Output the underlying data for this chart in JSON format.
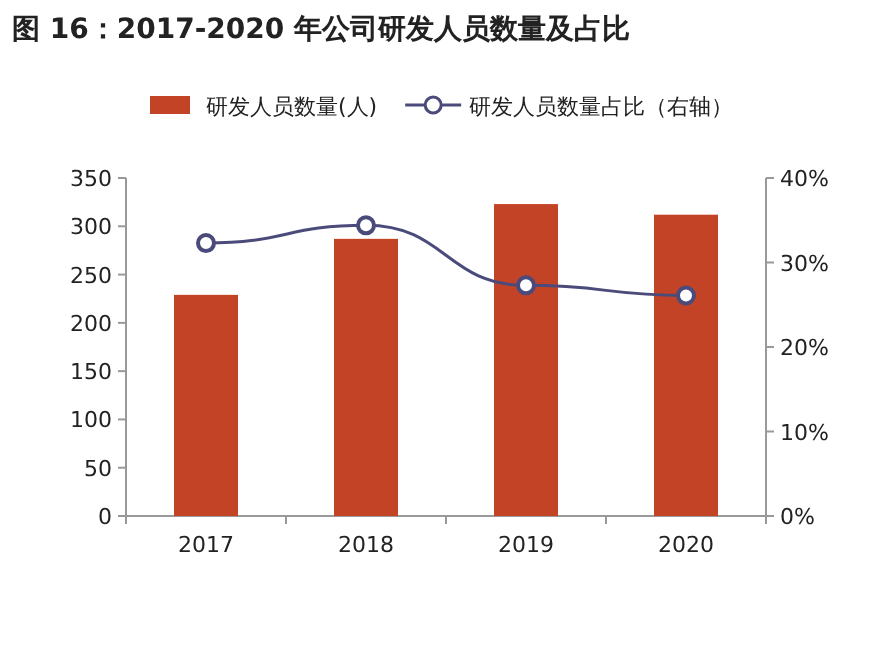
{
  "chart_data": {
    "type": "bar",
    "title": "图 16：2017-2020 年公司研发人员数量及占比",
    "categories": [
      "2017",
      "2018",
      "2019",
      "2020"
    ],
    "series": [
      {
        "name": "研发人员数量(人)",
        "color": "#c34327",
        "values": [
          229,
          287,
          323,
          312
        ]
      },
      {
        "name": "研发人员数量占比（右轴）",
        "type": "line",
        "axis": "y2",
        "color": "#4b4b7b",
        "marker": "circle",
        "values": [
          32.3,
          34.4,
          27.3,
          26.1
        ]
      }
    ],
    "ylim": [
      0,
      350
    ],
    "yticks": [
      0,
      50,
      100,
      150,
      200,
      250,
      300,
      350
    ],
    "y2lim": [
      0,
      40
    ],
    "y2ticks": [
      {
        "value": 0,
        "label": "0%"
      },
      {
        "value": 10,
        "label": "10%"
      },
      {
        "value": 20,
        "label": "20%"
      },
      {
        "value": 30,
        "label": "30%"
      },
      {
        "value": 40,
        "label": "40%"
      }
    ],
    "grid": false,
    "legend": "top"
  }
}
